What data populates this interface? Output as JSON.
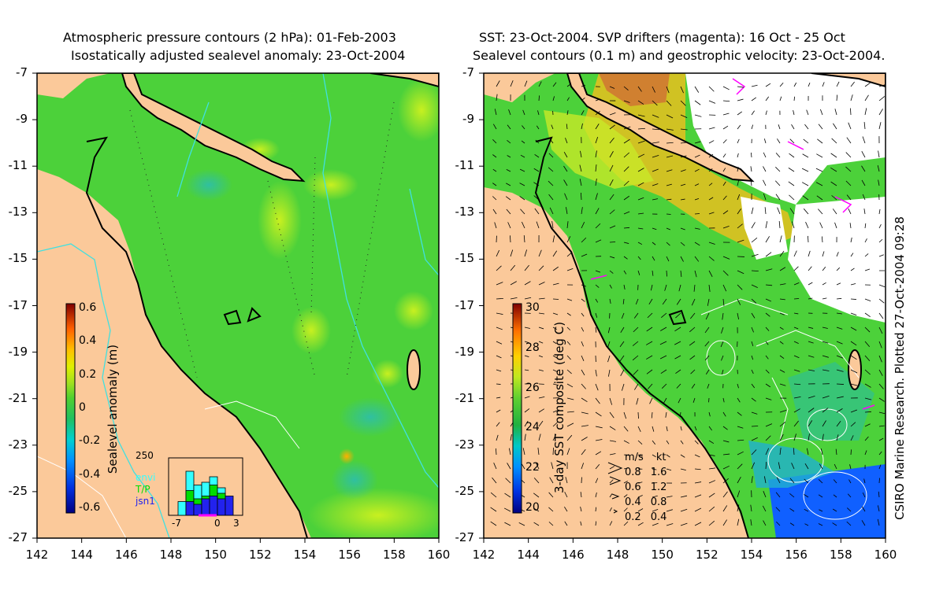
{
  "left_panel": {
    "title_line1": "Atmospheric pressure contours (2 hPa): 01-Feb-2003",
    "title_line2": "Isostatically adjusted sealevel anomaly: 23-Oct-2004",
    "colorbar": {
      "label": "Sealevel anomaly (m)",
      "ticks": [
        "0.6",
        "0.4",
        "0.2",
        "0",
        "-0.2",
        "-0.4",
        "-0.6"
      ]
    },
    "inset": {
      "ymax_label": "250",
      "x_ticks": [
        "-7",
        "0",
        "3"
      ],
      "legend": [
        {
          "label": "envi",
          "color": "#33ffff"
        },
        {
          "label": "T/P",
          "color": "#00dd00"
        },
        {
          "label": "jsn1",
          "color": "#2222ee"
        }
      ],
      "bars": [
        {
          "cyan": 0.25,
          "green": 0.0,
          "blue": 0.0
        },
        {
          "cyan": 0.8,
          "green": 0.45,
          "blue": 0.25
        },
        {
          "cyan": 0.55,
          "green": 0.3,
          "blue": 0.2
        },
        {
          "cyan": 0.6,
          "green": 0.35,
          "blue": 0.3
        },
        {
          "cyan": 0.7,
          "green": 0.55,
          "blue": 0.35
        },
        {
          "cyan": 0.5,
          "green": 0.4,
          "blue": 0.3
        },
        {
          "cyan": 0.0,
          "green": 0.0,
          "blue": 0.35
        }
      ]
    }
  },
  "right_panel": {
    "title_line1": "SST: 23-Oct-2004. SVP drifters (magenta): 16 Oct - 25 Oct",
    "title_line2": "Sealevel contours (0.1 m) and geostrophic velocity: 23-Oct-2004.",
    "colorbar": {
      "label": "3-day SST composite (deg C)",
      "ticks": [
        "30",
        "28",
        "26",
        "24",
        "22",
        "20"
      ]
    },
    "velocity_legend": {
      "header_ms": "m/s",
      "header_kt": "kt",
      "rows": [
        {
          "ms": "0.8",
          "kt": "1.6"
        },
        {
          "ms": "0.6",
          "kt": "1.2"
        },
        {
          "ms": "0.4",
          "kt": "0.8"
        },
        {
          "ms": "0.2",
          "kt": "0.4"
        }
      ]
    },
    "credit": "CSIRO Marine Research. Plotted 27-Oct-2004 09:28"
  },
  "axes": {
    "lat_ticks": [
      "-7",
      "-9",
      "-11",
      "-13",
      "-15",
      "-17",
      "-19",
      "-21",
      "-23",
      "-25",
      "-27"
    ],
    "lon_ticks": [
      "142",
      "144",
      "146",
      "148",
      "150",
      "152",
      "154",
      "156",
      "158",
      "160"
    ]
  },
  "colors": {
    "land": "#fbc99a",
    "ocean_green": "#4cd13a",
    "ocean_light": "#8fe02a",
    "anomaly_colormap": [
      "#000080",
      "#0050ff",
      "#00c8ff",
      "#20c870",
      "#60dd30",
      "#c8f020",
      "#ffd000",
      "#ff8000",
      "#c03000",
      "#800000"
    ]
  }
}
